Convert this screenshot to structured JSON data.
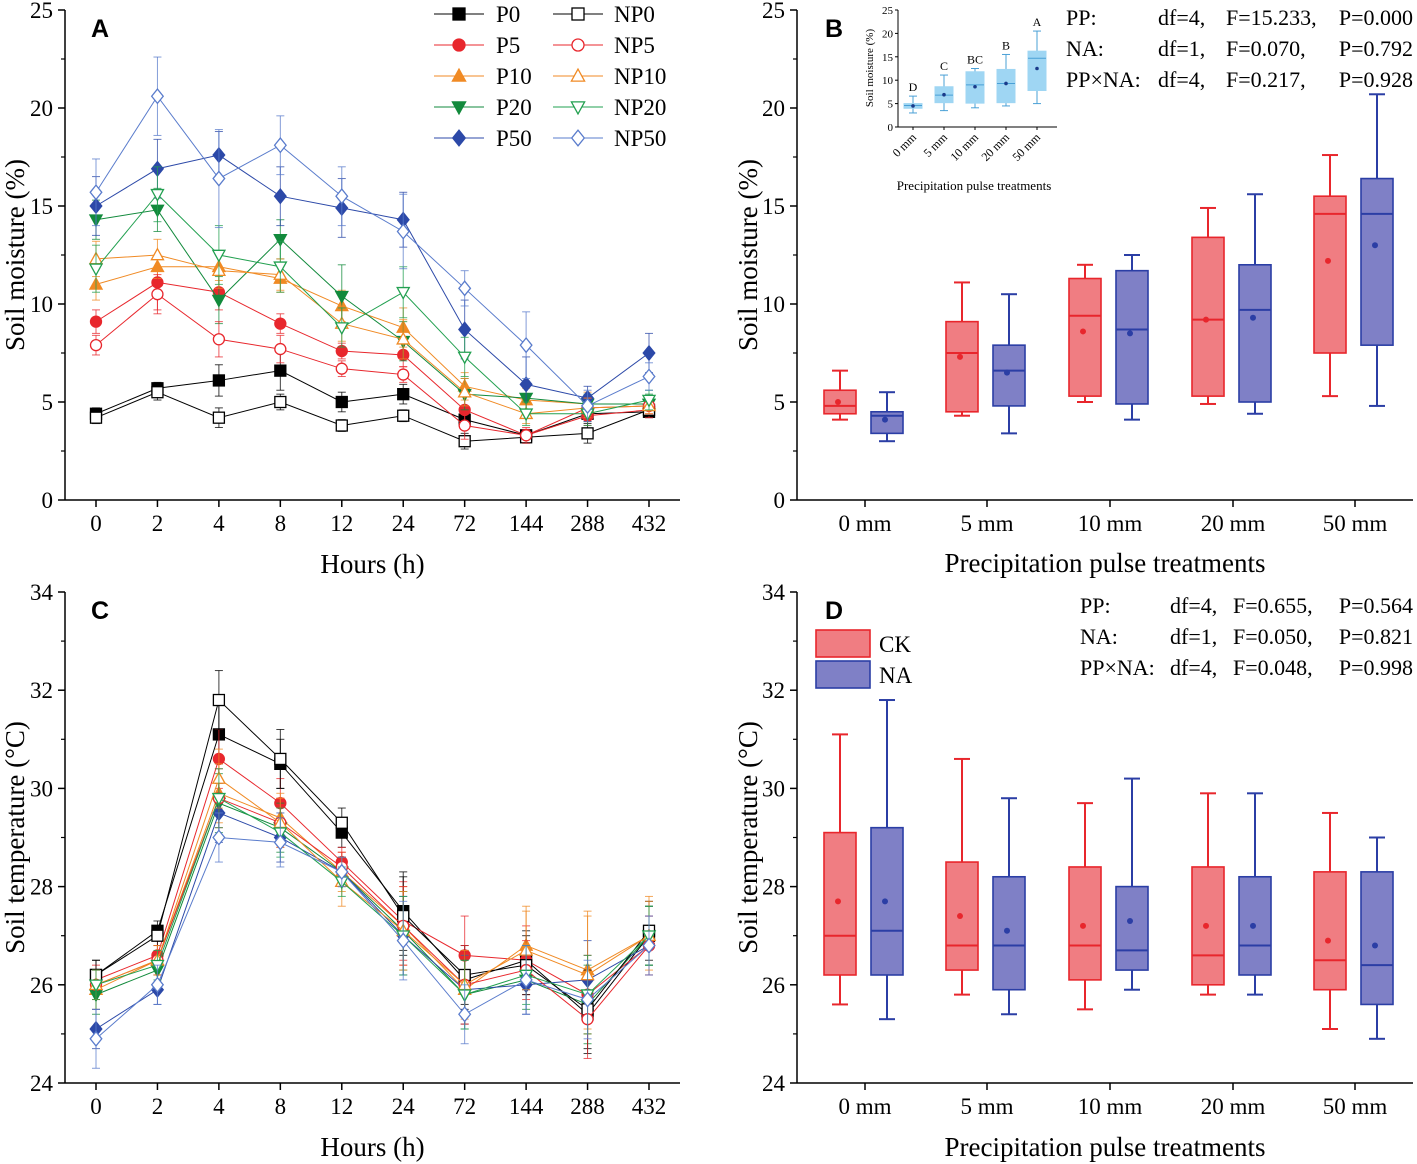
{
  "colors": {
    "P0": "#000000",
    "P5": "#e8272d",
    "P10": "#f08a24",
    "P20": "#128a3c",
    "P50": "#2c49a8",
    "NP0": "#000000",
    "NP5": "#e8272d",
    "NP10": "#f08a24",
    "NP20": "#22a050",
    "NP50": "#5a7ccc",
    "ck_fill": "#f07d82",
    "ck_edge": "#e8262c",
    "na_fill": "#7f80c6",
    "na_edge": "#2b3ea5",
    "inset_fill": "#9fd6f3",
    "inset_edge": "#4aa0d6"
  },
  "chart_data": [
    {
      "panel": "A",
      "type": "line",
      "xlabel": "Hours (h)",
      "ylabel": "Soil moisture (%)",
      "categories": [
        "0",
        "2",
        "4",
        "8",
        "12",
        "24",
        "72",
        "144",
        "288",
        "432"
      ],
      "ylim": [
        0,
        25
      ],
      "yticks": [
        0,
        5,
        10,
        15,
        20,
        25
      ],
      "series": [
        {
          "name": "P0",
          "marker": "square",
          "filled": true,
          "values": [
            4.4,
            5.7,
            6.1,
            6.6,
            5.0,
            5.4,
            4.1,
            3.3,
            4.4,
            4.5
          ],
          "errors": [
            0.3,
            0.3,
            0.8,
            1.0,
            0.5,
            0.5,
            0.4,
            0.3,
            0.4,
            0.3
          ]
        },
        {
          "name": "P5",
          "marker": "circle",
          "filled": true,
          "values": [
            9.1,
            11.1,
            10.6,
            9.0,
            7.6,
            7.4,
            4.6,
            3.3,
            4.3,
            4.6
          ],
          "errors": [
            0.6,
            1.4,
            0.9,
            0.5,
            0.4,
            0.6,
            0.8,
            0.3,
            0.5,
            0.4
          ]
        },
        {
          "name": "P10",
          "marker": "triangle-up",
          "filled": true,
          "values": [
            11.0,
            11.9,
            11.9,
            11.3,
            9.9,
            8.8,
            5.8,
            5.1,
            4.9,
            4.9
          ],
          "errors": [
            0.8,
            0.6,
            0.7,
            0.7,
            0.8,
            1.0,
            0.7,
            0.6,
            0.6,
            0.4
          ]
        },
        {
          "name": "P20",
          "marker": "triangle-down",
          "filled": true,
          "values": [
            14.3,
            14.8,
            10.2,
            13.3,
            10.4,
            8.1,
            5.4,
            5.2,
            4.9,
            4.9
          ],
          "errors": [
            1.0,
            1.1,
            1.2,
            1.0,
            1.6,
            1.0,
            0.8,
            0.6,
            0.5,
            0.5
          ]
        },
        {
          "name": "P50",
          "marker": "diamond",
          "filled": true,
          "values": [
            15.0,
            16.9,
            17.6,
            15.5,
            14.9,
            14.3,
            8.7,
            5.9,
            5.2,
            7.5
          ],
          "errors": [
            1.5,
            1.5,
            1.2,
            1.5,
            1.5,
            1.4,
            1.5,
            1.4,
            0.6,
            1.0
          ]
        },
        {
          "name": "NP0",
          "marker": "square",
          "filled": false,
          "values": [
            4.2,
            5.5,
            4.2,
            5.0,
            3.8,
            4.3,
            3.0,
            3.2,
            3.4,
            4.6
          ],
          "errors": [
            0.3,
            0.4,
            0.5,
            0.4,
            0.3,
            0.3,
            0.4,
            0.3,
            0.5,
            0.3
          ]
        },
        {
          "name": "NP5",
          "marker": "circle",
          "filled": false,
          "values": [
            7.9,
            10.5,
            8.2,
            7.7,
            6.7,
            6.4,
            3.8,
            3.3,
            4.7,
            4.8
          ],
          "errors": [
            0.5,
            1.0,
            0.9,
            0.7,
            0.4,
            0.4,
            0.7,
            0.4,
            0.5,
            0.4
          ]
        },
        {
          "name": "NP10",
          "marker": "triangle-up",
          "filled": false,
          "values": [
            12.3,
            12.5,
            11.7,
            11.5,
            9.0,
            8.2,
            5.5,
            4.4,
            4.7,
            4.8
          ],
          "errors": [
            0.9,
            0.8,
            0.9,
            0.8,
            0.9,
            1.0,
            0.7,
            0.5,
            0.5,
            0.4
          ]
        },
        {
          "name": "NP20",
          "marker": "triangle-down",
          "filled": false,
          "values": [
            11.8,
            15.6,
            12.5,
            11.9,
            8.8,
            10.6,
            7.3,
            4.4,
            4.4,
            5.1
          ],
          "errors": [
            1.2,
            1.4,
            1.5,
            1.3,
            1.0,
            1.3,
            1.0,
            0.6,
            0.6,
            0.5
          ]
        },
        {
          "name": "NP50",
          "marker": "diamond",
          "filled": false,
          "values": [
            15.7,
            20.6,
            16.4,
            18.1,
            15.5,
            13.7,
            10.8,
            7.9,
            4.8,
            6.3
          ],
          "errors": [
            1.7,
            2.0,
            2.5,
            1.5,
            1.5,
            1.9,
            0.9,
            1.7,
            0.8,
            0.7
          ]
        }
      ],
      "legend_left": [
        "P0",
        "P5",
        "P10",
        "P20",
        "P50"
      ],
      "legend_right": [
        "NP0",
        "NP5",
        "NP10",
        "NP20",
        "NP50"
      ]
    },
    {
      "panel": "B",
      "type": "box",
      "xlabel": "Precipitation pulse treatments",
      "ylabel": "Soil moisture (%)",
      "categories": [
        "0 mm",
        "5 mm",
        "10 mm",
        "20 mm",
        "50 mm"
      ],
      "ylim": [
        0,
        25
      ],
      "yticks": [
        0,
        5,
        10,
        15,
        20,
        25
      ],
      "series": [
        {
          "name": "CK",
          "boxes": [
            {
              "min": 4.1,
              "q1": 4.4,
              "median": 4.8,
              "q3": 5.6,
              "max": 6.6,
              "mean": 5.0
            },
            {
              "min": 4.3,
              "q1": 4.5,
              "median": 7.5,
              "q3": 9.1,
              "max": 11.1,
              "mean": 7.3
            },
            {
              "min": 5.0,
              "q1": 5.3,
              "median": 9.4,
              "q3": 11.3,
              "max": 12.0,
              "mean": 8.6
            },
            {
              "min": 4.9,
              "q1": 5.3,
              "median": 9.2,
              "q3": 13.4,
              "max": 14.9,
              "mean": 9.2
            },
            {
              "min": 5.3,
              "q1": 7.5,
              "median": 14.6,
              "q3": 15.5,
              "max": 17.6,
              "mean": 12.2
            }
          ]
        },
        {
          "name": "NA",
          "boxes": [
            {
              "min": 3.0,
              "q1": 3.4,
              "median": 4.3,
              "q3": 4.5,
              "max": 5.5,
              "mean": 4.1
            },
            {
              "min": 3.4,
              "q1": 4.8,
              "median": 6.6,
              "q3": 7.9,
              "max": 10.5,
              "mean": 6.5
            },
            {
              "min": 4.1,
              "q1": 4.9,
              "median": 8.7,
              "q3": 11.7,
              "max": 12.5,
              "mean": 8.5
            },
            {
              "min": 4.4,
              "q1": 5.0,
              "median": 9.7,
              "q3": 12.0,
              "max": 15.6,
              "mean": 9.3
            },
            {
              "min": 4.8,
              "q1": 7.9,
              "median": 14.6,
              "q3": 16.4,
              "max": 20.7,
              "mean": 13.0
            }
          ]
        }
      ],
      "stats": [
        {
          "term": "PP:",
          "df": "df=4,",
          "F": "F=15.233,",
          "P": "P=0.000"
        },
        {
          "term": "NA:",
          "df": "df=1,",
          "F": "F=0.070,",
          "P": "P=0.792"
        },
        {
          "term": "PP×NA:",
          "df": "df=4,",
          "F": "F=0.217,",
          "P": "P=0.928"
        }
      ],
      "inset": {
        "type": "box",
        "xlabel": "Precipitation pulse treatments",
        "ylabel": "Soil moisture (%)",
        "categories": [
          "0 mm",
          "5 mm",
          "10 mm",
          "20 mm",
          "50 mm"
        ],
        "ylim": [
          0,
          25
        ],
        "yticks": [
          0,
          5,
          10,
          15,
          20,
          25
        ],
        "letters": [
          "D",
          "C",
          "BC",
          "B",
          "A"
        ],
        "boxes": [
          {
            "min": 3.0,
            "q1": 4.0,
            "median": 4.6,
            "q3": 5.0,
            "max": 6.6,
            "mean": 4.5
          },
          {
            "min": 3.5,
            "q1": 5.2,
            "median": 6.8,
            "q3": 8.6,
            "max": 11.1,
            "mean": 6.9
          },
          {
            "min": 4.1,
            "q1": 5.1,
            "median": 9.0,
            "q3": 11.8,
            "max": 12.5,
            "mean": 8.6
          },
          {
            "min": 4.5,
            "q1": 5.2,
            "median": 9.3,
            "q3": 12.3,
            "max": 15.5,
            "mean": 9.3
          },
          {
            "min": 5.0,
            "q1": 7.8,
            "median": 14.7,
            "q3": 16.2,
            "max": 20.5,
            "mean": 12.5
          }
        ]
      }
    },
    {
      "panel": "C",
      "type": "line",
      "xlabel": "Hours (h)",
      "ylabel": "Soil  temperature (°C)",
      "categories": [
        "0",
        "2",
        "4",
        "8",
        "12",
        "24",
        "72",
        "144",
        "288",
        "432"
      ],
      "ylim": [
        24,
        34
      ],
      "yticks": [
        24,
        26,
        28,
        30,
        32,
        34
      ],
      "series": [
        {
          "name": "P0",
          "marker": "square",
          "filled": true,
          "values": [
            26.2,
            27.1,
            31.1,
            30.5,
            29.1,
            27.5,
            26.1,
            26.5,
            25.4,
            27.0
          ],
          "errors": [
            0.3,
            0.2,
            0.6,
            0.5,
            0.3,
            0.8,
            0.6,
            0.6,
            0.8,
            0.6
          ]
        },
        {
          "name": "P5",
          "marker": "circle",
          "filled": true,
          "values": [
            26.1,
            26.6,
            30.6,
            29.7,
            28.5,
            27.3,
            26.6,
            26.5,
            25.8,
            26.8
          ],
          "errors": [
            0.3,
            0.3,
            0.6,
            0.5,
            0.3,
            0.8,
            0.8,
            0.7,
            0.8,
            0.6
          ]
        },
        {
          "name": "P10",
          "marker": "triangle-up",
          "filled": true,
          "values": [
            25.9,
            26.5,
            29.9,
            29.4,
            28.3,
            27.2,
            25.9,
            26.8,
            26.3,
            27.0
          ],
          "errors": [
            0.4,
            0.3,
            0.6,
            0.5,
            0.4,
            0.8,
            0.7,
            0.8,
            1.2,
            0.8
          ]
        },
        {
          "name": "P20",
          "marker": "triangle-down",
          "filled": true,
          "values": [
            25.8,
            26.3,
            29.7,
            29.2,
            28.3,
            27.1,
            25.8,
            26.1,
            25.6,
            27.0
          ],
          "errors": [
            0.4,
            0.3,
            0.6,
            0.5,
            0.3,
            0.8,
            0.7,
            0.6,
            0.8,
            0.6
          ]
        },
        {
          "name": "P50",
          "marker": "diamond",
          "filled": true,
          "values": [
            25.1,
            25.9,
            29.5,
            29.0,
            28.3,
            27.0,
            25.9,
            26.0,
            26.1,
            26.8
          ],
          "errors": [
            0.4,
            0.3,
            0.6,
            0.5,
            0.3,
            0.8,
            0.7,
            0.6,
            0.8,
            0.6
          ]
        },
        {
          "name": "NP0",
          "marker": "square",
          "filled": false,
          "values": [
            26.2,
            27.0,
            31.8,
            30.6,
            29.3,
            27.4,
            26.2,
            26.4,
            25.5,
            27.1
          ],
          "errors": [
            0.3,
            0.2,
            0.6,
            0.6,
            0.3,
            0.8,
            0.6,
            0.6,
            0.8,
            0.6
          ]
        },
        {
          "name": "NP5",
          "marker": "circle",
          "filled": false,
          "values": [
            26.0,
            26.5,
            29.8,
            29.3,
            28.4,
            27.2,
            26.0,
            26.3,
            25.3,
            26.8
          ],
          "errors": [
            0.3,
            0.3,
            0.6,
            0.5,
            0.3,
            0.8,
            0.8,
            0.6,
            0.8,
            0.6
          ]
        },
        {
          "name": "NP10",
          "marker": "triangle-up",
          "filled": false,
          "values": [
            26.0,
            26.5,
            30.2,
            29.3,
            28.1,
            27.1,
            26.0,
            26.7,
            26.2,
            27.0
          ],
          "errors": [
            0.3,
            0.3,
            0.6,
            0.5,
            0.5,
            0.8,
            0.7,
            0.8,
            1.2,
            0.7
          ]
        },
        {
          "name": "NP20",
          "marker": "triangle-down",
          "filled": false,
          "values": [
            26.0,
            26.4,
            29.8,
            29.1,
            28.1,
            27.0,
            25.8,
            26.2,
            25.8,
            27.0
          ],
          "errors": [
            0.3,
            0.3,
            0.6,
            0.5,
            0.3,
            0.8,
            0.7,
            0.6,
            0.8,
            0.6
          ]
        },
        {
          "name": "NP50",
          "marker": "diamond",
          "filled": false,
          "values": [
            24.9,
            26.0,
            29.0,
            28.9,
            28.3,
            26.9,
            25.4,
            26.1,
            25.7,
            26.8
          ],
          "errors": [
            0.6,
            0.4,
            0.5,
            0.5,
            0.3,
            0.8,
            0.6,
            0.7,
            0.8,
            0.6
          ]
        }
      ]
    },
    {
      "panel": "D",
      "type": "box",
      "xlabel": "Precipitation pulse treatments",
      "ylabel": "Soil  temperature (°C)",
      "categories": [
        "0 mm",
        "5 mm",
        "10 mm",
        "20 mm",
        "50 mm"
      ],
      "ylim": [
        24,
        34
      ],
      "yticks": [
        24,
        26,
        28,
        30,
        32,
        34
      ],
      "legend": [
        "CK",
        "NA"
      ],
      "series": [
        {
          "name": "CK",
          "boxes": [
            {
              "min": 25.6,
              "q1": 26.2,
              "median": 27.0,
              "q3": 29.1,
              "max": 31.1,
              "mean": 27.7
            },
            {
              "min": 25.8,
              "q1": 26.3,
              "median": 26.8,
              "q3": 28.5,
              "max": 30.6,
              "mean": 27.4
            },
            {
              "min": 25.5,
              "q1": 26.1,
              "median": 26.8,
              "q3": 28.4,
              "max": 29.7,
              "mean": 27.2
            },
            {
              "min": 25.8,
              "q1": 26.0,
              "median": 26.6,
              "q3": 28.4,
              "max": 29.9,
              "mean": 27.2
            },
            {
              "min": 25.1,
              "q1": 25.9,
              "median": 26.5,
              "q3": 28.3,
              "max": 29.5,
              "mean": 26.9
            }
          ]
        },
        {
          "name": "NA",
          "boxes": [
            {
              "min": 25.3,
              "q1": 26.2,
              "median": 27.1,
              "q3": 29.2,
              "max": 31.8,
              "mean": 27.7
            },
            {
              "min": 25.4,
              "q1": 25.9,
              "median": 26.8,
              "q3": 28.2,
              "max": 29.8,
              "mean": 27.1
            },
            {
              "min": 25.9,
              "q1": 26.3,
              "median": 26.7,
              "q3": 28.0,
              "max": 30.2,
              "mean": 27.3
            },
            {
              "min": 25.8,
              "q1": 26.2,
              "median": 26.8,
              "q3": 28.2,
              "max": 29.9,
              "mean": 27.2
            },
            {
              "min": 24.9,
              "q1": 25.6,
              "median": 26.4,
              "q3": 28.3,
              "max": 29.0,
              "mean": 26.8
            }
          ]
        }
      ],
      "stats": [
        {
          "term": "PP:",
          "df": "df=4,",
          "F": "F=0.655,",
          "P": "P=0.564"
        },
        {
          "term": "NA:",
          "df": "df=1,",
          "F": "F=0.050,",
          "P": "P=0.821"
        },
        {
          "term": "PP×NA:",
          "df": "df=4,",
          "F": "F=0.048,",
          "P": "P=0.998"
        }
      ]
    }
  ]
}
